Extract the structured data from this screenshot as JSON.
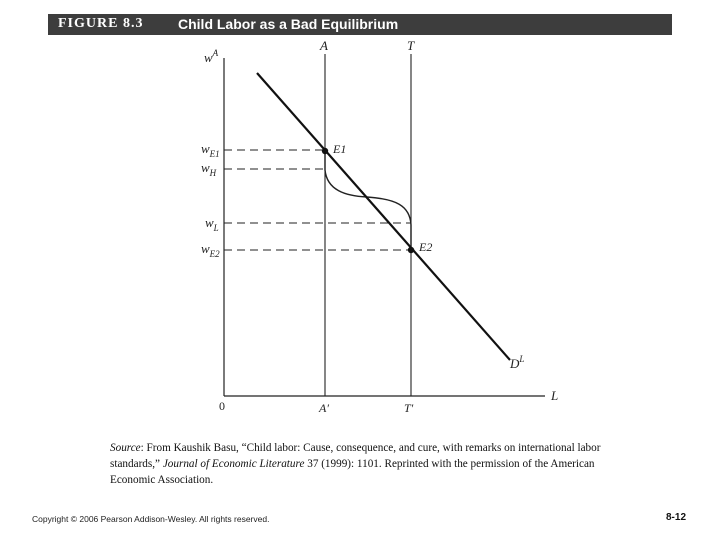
{
  "figure": {
    "number": "FIGURE 8.3",
    "title": "Child Labor as a Bad Equilibrium"
  },
  "diagram": {
    "y_axis_label": "w",
    "y_axis_superscript": "A",
    "x_axis_label": "L",
    "origin_label": "0",
    "vertical_line_labels": {
      "A_top": "A",
      "T_top": "T",
      "A_bottom": "A′",
      "T_bottom": "T′"
    },
    "wage_labels": [
      {
        "base": "w",
        "sub": "E1"
      },
      {
        "base": "w",
        "sub": "H"
      },
      {
        "base": "w",
        "sub": "L"
      },
      {
        "base": "w",
        "sub": "E2"
      }
    ],
    "point_labels": {
      "E1": "E1",
      "E2": "E2"
    },
    "demand_label": "D",
    "demand_superscript": "L"
  },
  "source": {
    "prefix": "Source",
    "text_a": ": From Kaushik Basu, “Child labor: Cause, consequence, and cure, with remarks on international labor standards,” ",
    "journal": "Journal of Economic Literature",
    "text_b": " 37 (1999): 1101. Reprinted with the permission of the American Economic Association."
  },
  "footer": {
    "copyright": "Copyright © 2006 Pearson Addison-Wesley. All rights reserved.",
    "page": "8-12"
  }
}
